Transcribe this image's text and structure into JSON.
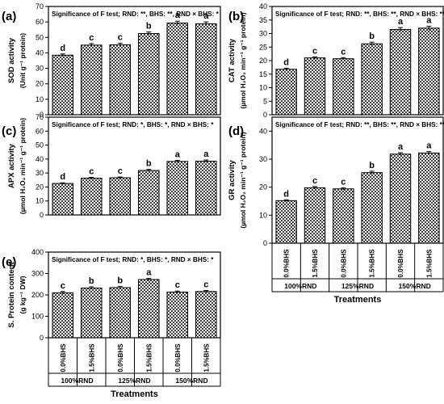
{
  "treatments_label": "Treatments",
  "chart_data": [
    {
      "type": "bar",
      "panel_label": "(a)",
      "significance": "Significance of F test; RND: **, BHS: **, RND × BHS: *",
      "ylabel": "SOD activity",
      "ylabel_units": "(Unit g⁻¹ protein)",
      "ylim": [
        0,
        70
      ],
      "yticks": [
        0,
        10,
        20,
        30,
        40,
        50,
        60,
        70
      ],
      "categories": [
        "0.0%BHS",
        "1.5%BHS",
        "0.0%BHS",
        "1.5%BHS",
        "0.0%BHS",
        "1.5%BHS"
      ],
      "groups": [
        "100%RND",
        "125%RND",
        "150%RND"
      ],
      "values": [
        38.5,
        45.0,
        45.2,
        52.5,
        59.3,
        58.8
      ],
      "errors": [
        0.8,
        1.0,
        1.0,
        1.0,
        1.2,
        1.2
      ],
      "letters": [
        "d",
        "c",
        "c",
        "b",
        "a",
        "a"
      ]
    },
    {
      "type": "bar",
      "panel_label": "(b)",
      "significance": "Significance of F test; RND: **, BHS: **, RND × BHS: **",
      "ylabel": "CAT activity",
      "ylabel_units": "(µmol H₂O₂ min⁻¹ g⁻¹ protein)",
      "ylim": [
        0,
        40
      ],
      "yticks": [
        0,
        5,
        10,
        15,
        20,
        25,
        30,
        35,
        40
      ],
      "categories": [
        "0.0%BHS",
        "1.5%BHS",
        "0.0%BHS",
        "1.5%BHS",
        "0.0%BHS",
        "1.5%BHS"
      ],
      "groups": [
        "100%RND",
        "125%RND",
        "150%RND"
      ],
      "values": [
        16.8,
        21.0,
        20.7,
        26.2,
        31.5,
        32.0
      ],
      "errors": [
        0.4,
        0.4,
        0.4,
        0.6,
        0.7,
        0.7
      ],
      "letters": [
        "d",
        "c",
        "c",
        "b",
        "a",
        "a"
      ]
    },
    {
      "type": "bar",
      "panel_label": "(c)",
      "significance": "Significance of F test; RND: *, BHS: *, RND × BHS: *",
      "ylabel": "APX activity",
      "ylabel_units": "(µmol H₂O₂ min⁻¹ g⁻¹ protein)",
      "ylim": [
        0,
        70
      ],
      "yticks": [
        0,
        10,
        20,
        30,
        40,
        50,
        60,
        70
      ],
      "categories": [
        "0.0%BHS",
        "1.5%BHS",
        "0.0%BHS",
        "1.5%BHS",
        "0.0%BHS",
        "1.5%BHS"
      ],
      "groups": [
        "100%RND",
        "125%RND",
        "150%RND"
      ],
      "values": [
        22.5,
        26.3,
        26.6,
        31.8,
        38.3,
        38.5
      ],
      "errors": [
        0.5,
        0.6,
        0.6,
        0.8,
        0.8,
        0.8
      ],
      "letters": [
        "d",
        "c",
        "c",
        "b",
        "a",
        "a"
      ]
    },
    {
      "type": "bar",
      "panel_label": "(d)",
      "significance": "Significance of F test; RND: **, BHS: **, RND × BHS: **",
      "ylabel": "GR activity",
      "ylabel_units": "(µmol H₂O₂ min⁻¹ g⁻¹ protein)",
      "ylim": [
        0,
        45
      ],
      "yticks": [
        0,
        10,
        20,
        30,
        40
      ],
      "categories": [
        "0.0%BHS",
        "1.5%BHS",
        "0.0%BHS",
        "1.5%BHS",
        "0.0%BHS",
        "1.5%BHS"
      ],
      "groups": [
        "100%RND",
        "125%RND",
        "150%RND"
      ],
      "values": [
        15.2,
        19.8,
        19.4,
        25.2,
        31.8,
        32.2
      ],
      "errors": [
        0.3,
        0.4,
        0.4,
        0.5,
        0.5,
        0.5
      ],
      "letters": [
        "d",
        "c",
        "c",
        "b",
        "a",
        "a"
      ]
    },
    {
      "type": "bar",
      "panel_label": "(e)",
      "significance": "Significance of F test; RND: *, BHS: *, RND × BHS: *",
      "ylabel": "S. Protein content",
      "ylabel_units": "(g kg⁻¹ DW)",
      "ylim": [
        0,
        400
      ],
      "yticks": [
        0,
        100,
        200,
        300,
        400
      ],
      "categories": [
        "0.0%BHS",
        "1.5%BHS",
        "0.0%BHS",
        "1.5%BHS",
        "0.0%BHS",
        "1.5%BHS"
      ],
      "groups": [
        "100%RND",
        "125%RND",
        "150%RND"
      ],
      "values": [
        210,
        232,
        234,
        272,
        213,
        216
      ],
      "errors": [
        6,
        6,
        6,
        5,
        5,
        5
      ],
      "letters": [
        "c",
        "b",
        "b",
        "a",
        "c",
        "c"
      ]
    }
  ]
}
